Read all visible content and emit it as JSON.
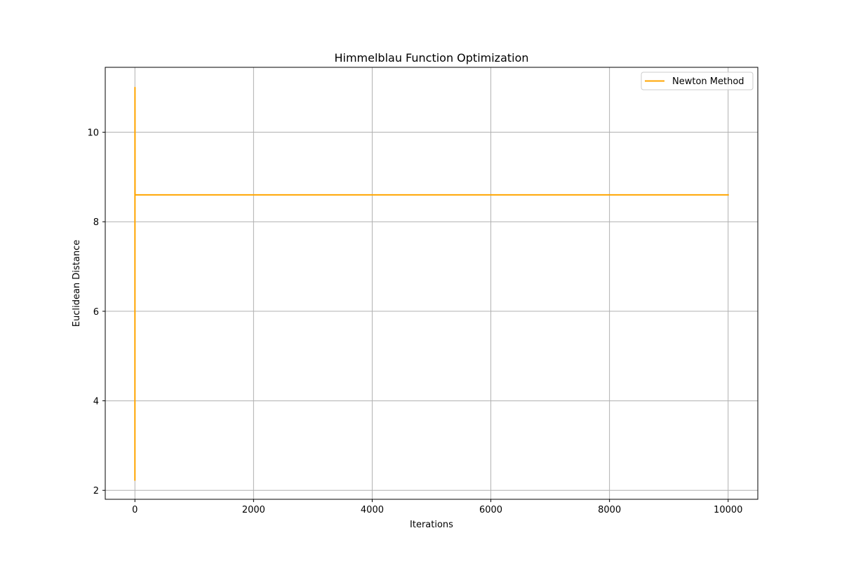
{
  "chart_data": {
    "type": "line",
    "title": "Himmelblau Function Optimization",
    "xlabel": "Iterations",
    "ylabel": "Euclidean Distance",
    "xlim": [
      -500,
      10500
    ],
    "ylim": [
      1.8,
      11.45
    ],
    "xticks": [
      0,
      2000,
      4000,
      6000,
      8000,
      10000
    ],
    "xtick_labels": [
      "0",
      "2000",
      "4000",
      "6000",
      "8000",
      "10000"
    ],
    "yticks": [
      2,
      4,
      6,
      8,
      10
    ],
    "ytick_labels": [
      "2",
      "4",
      "6",
      "8",
      "10"
    ],
    "grid": true,
    "legend_position": "top-right",
    "series": [
      {
        "name": "Newton Method",
        "color": "#ffa500",
        "x": [
          0,
          1,
          2,
          3,
          10000
        ],
        "y": [
          2.23,
          11.0,
          8.6,
          8.6,
          8.6
        ]
      }
    ]
  }
}
